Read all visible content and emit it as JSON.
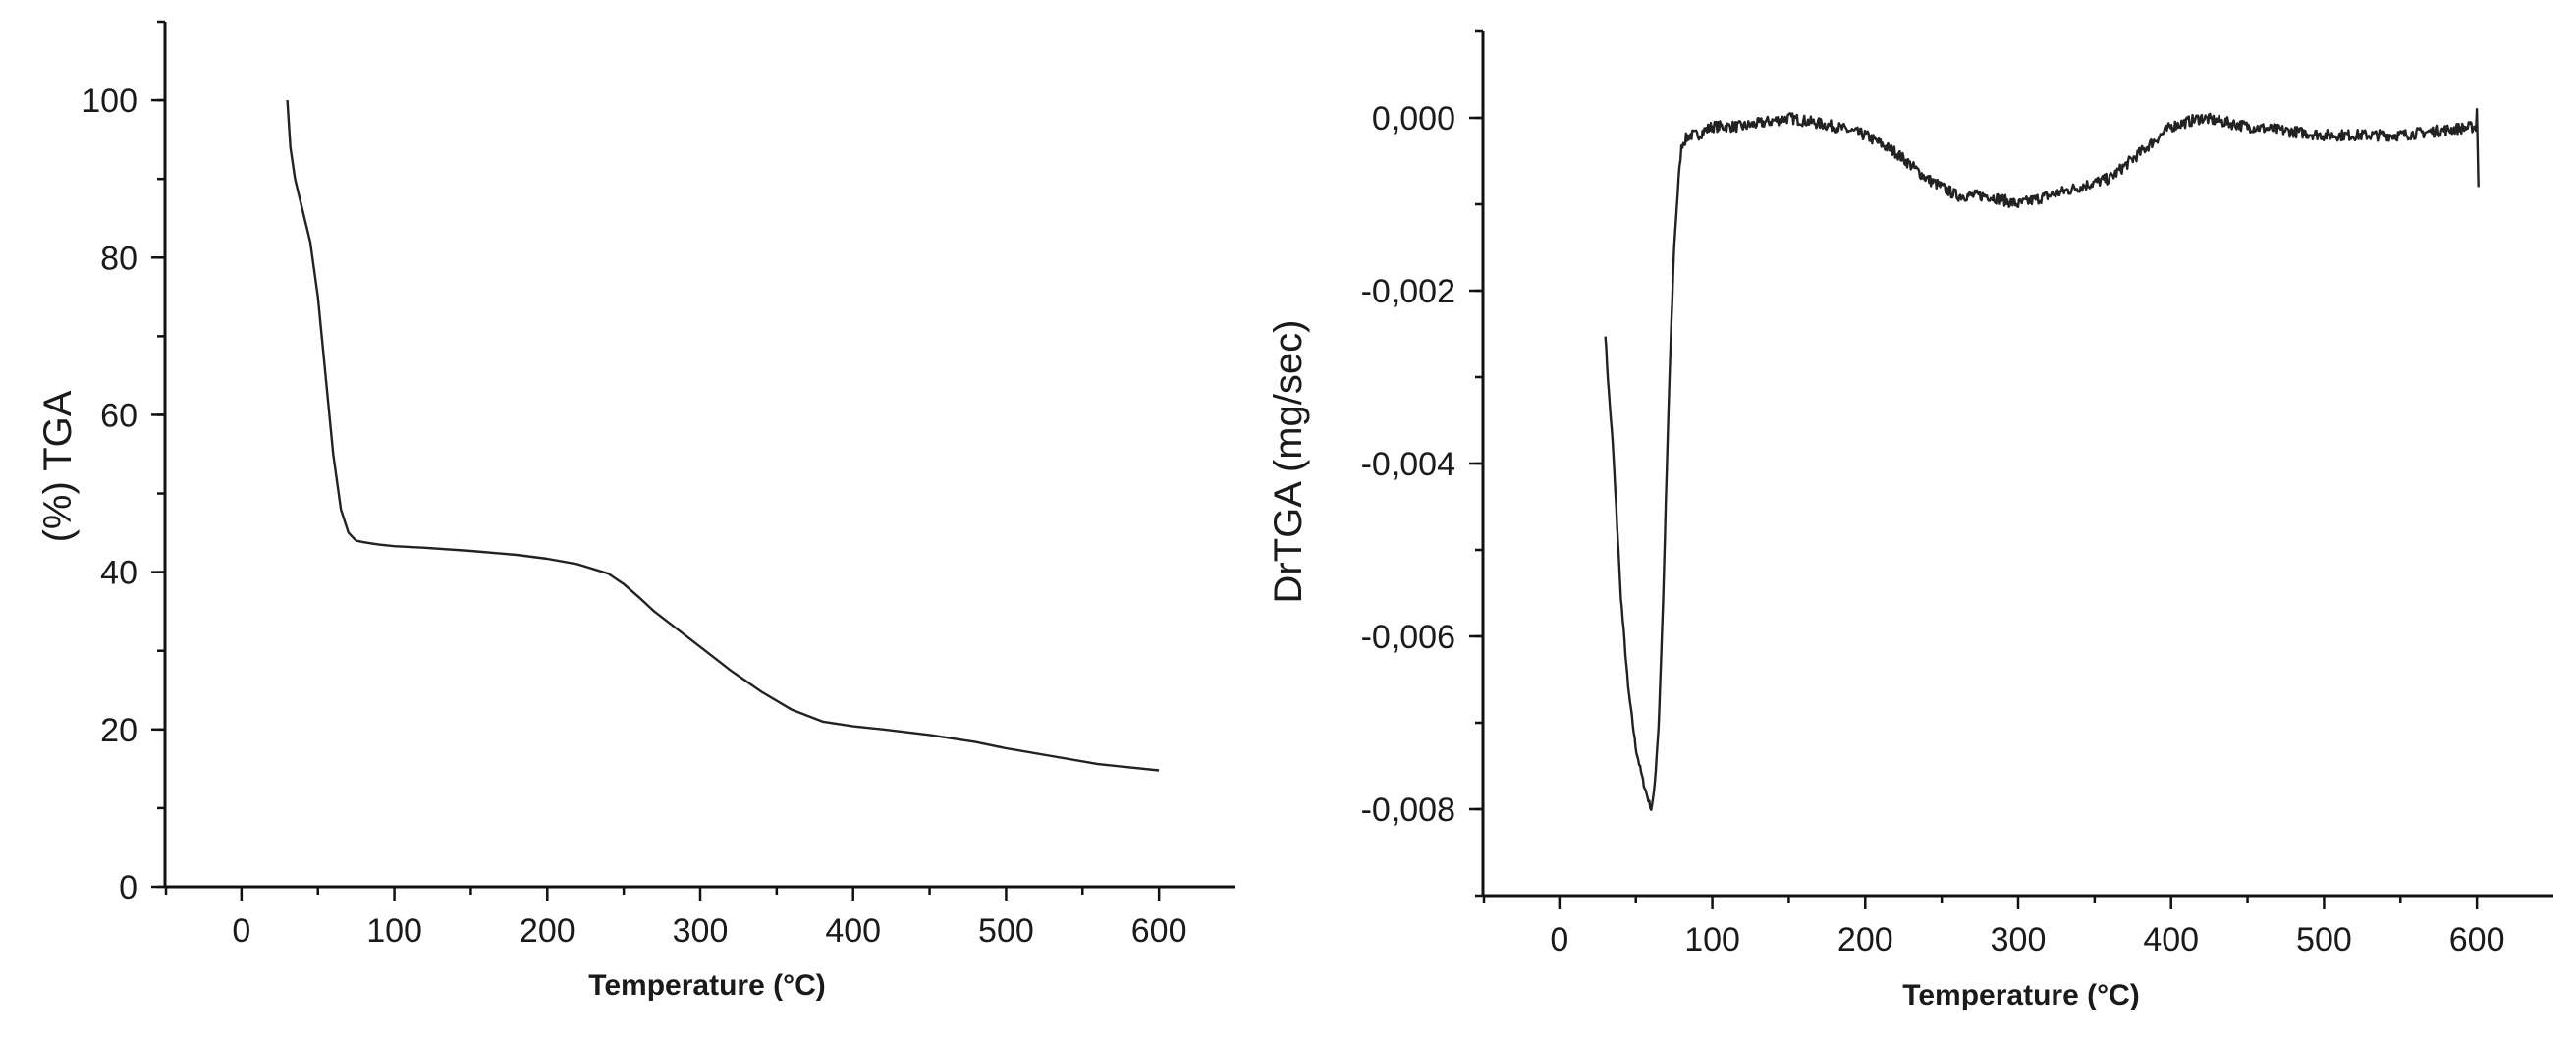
{
  "chart_data": [
    {
      "type": "line",
      "ylabel": "(%)  TGA",
      "xlabel": "Temperature (°C)",
      "xlim": [
        -50,
        650
      ],
      "ylim": [
        0,
        110
      ],
      "xticks": [
        "0",
        "100",
        "200",
        "300",
        "400",
        "500",
        "600"
      ],
      "yticks": [
        "0",
        "20",
        "40",
        "60",
        "80",
        "100"
      ],
      "grid": false,
      "series": [
        {
          "x": [
            30,
            32,
            35,
            40,
            45,
            50,
            55,
            60,
            65,
            70,
            75,
            80,
            90,
            100,
            120,
            150,
            180,
            200,
            220,
            240,
            250,
            260,
            270,
            280,
            300,
            320,
            340,
            360,
            380,
            400,
            420,
            450,
            480,
            500,
            530,
            560,
            600
          ],
          "y": [
            100,
            94,
            90,
            86,
            82,
            75,
            65,
            55,
            48,
            45,
            44,
            43.8,
            43.5,
            43.3,
            43.1,
            42.7,
            42.2,
            41.7,
            41,
            39.8,
            38.5,
            36.8,
            35,
            33.5,
            30.5,
            27.5,
            24.8,
            22.5,
            21,
            20.4,
            20,
            19.3,
            18.4,
            17.6,
            16.6,
            15.6,
            14.8
          ]
        }
      ]
    },
    {
      "type": "line",
      "ylabel": "DrTGA (mg/sec)",
      "xlabel": "Temperature (°C)",
      "xlim": [
        -50,
        650
      ],
      "ylim": [
        -0.009,
        0.001
      ],
      "xticks": [
        "0",
        "100",
        "200",
        "300",
        "400",
        "500",
        "600"
      ],
      "yticks": [
        "0,000",
        "-0,002",
        "-0,004",
        "-0,006",
        "-0,008"
      ],
      "grid": false,
      "series": [
        {
          "x": [
            30,
            32,
            35,
            38,
            40,
            45,
            50,
            55,
            60,
            62,
            65,
            68,
            70,
            72,
            75,
            78,
            80,
            85,
            90,
            100,
            120,
            150,
            180,
            200,
            220,
            240,
            260,
            280,
            300,
            320,
            340,
            360,
            380,
            400,
            420,
            450,
            500,
            550,
            600,
            601
          ],
          "y": [
            -0.0025,
            -0.0031,
            -0.0038,
            -0.0048,
            -0.0055,
            -0.0066,
            -0.0073,
            -0.0077,
            -0.008,
            -0.0078,
            -0.007,
            -0.0055,
            -0.0042,
            -0.003,
            -0.0015,
            -0.0007,
            -0.0003,
            -0.0002,
            -0.0002,
            -0.0001,
            -0.0001,
            0.0,
            -0.0001,
            -0.0002,
            -0.0004,
            -0.0007,
            -0.0009,
            -0.0009,
            -0.001,
            -0.0009,
            -0.0008,
            -0.0007,
            -0.0004,
            -0.0001,
            0.0,
            -0.0001,
            -0.0002,
            -0.0002,
            -0.0001,
            -0.0008
          ]
        }
      ]
    }
  ]
}
